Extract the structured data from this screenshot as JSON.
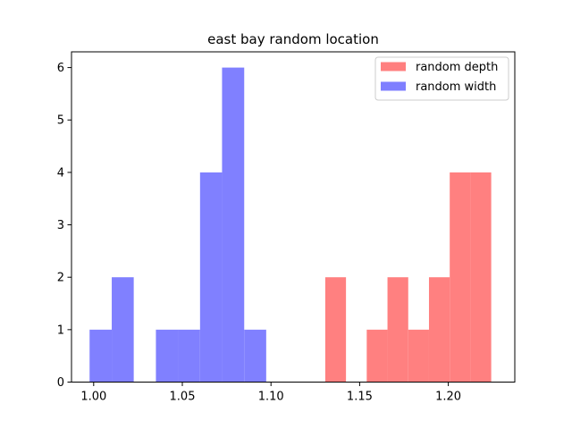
{
  "chart_data": {
    "type": "bar",
    "title": "east bay random location",
    "xlabel": "",
    "ylabel": "",
    "xlim": [
      0.9875,
      1.2375
    ],
    "ylim": [
      0,
      6.3
    ],
    "xticks": [
      1.0,
      1.05,
      1.1,
      1.15,
      1.2
    ],
    "xtick_labels": [
      "1.00",
      "1.05",
      "1.10",
      "1.15",
      "1.20"
    ],
    "yticks": [
      0,
      1,
      2,
      3,
      4,
      5,
      6
    ],
    "ytick_labels": [
      "0",
      "1",
      "2",
      "3",
      "4",
      "5",
      "6"
    ],
    "grid": false,
    "legend_position": "top-right",
    "bin_width": 0.0117,
    "series": [
      {
        "name": "random depth",
        "color": "#ff8080",
        "bins": [
          {
            "x0": 1.1306,
            "x1": 1.1423,
            "count": 2
          },
          {
            "x0": 1.1423,
            "x1": 1.154,
            "count": 0
          },
          {
            "x0": 1.154,
            "x1": 1.1657,
            "count": 1
          },
          {
            "x0": 1.1657,
            "x1": 1.1774,
            "count": 2
          },
          {
            "x0": 1.1774,
            "x1": 1.1891,
            "count": 1
          },
          {
            "x0": 1.1891,
            "x1": 1.2008,
            "count": 2
          },
          {
            "x0": 1.2008,
            "x1": 1.2125,
            "count": 4
          },
          {
            "x0": 1.2125,
            "x1": 1.2242,
            "count": 4
          }
        ]
      },
      {
        "name": "random width",
        "color": "#8080ff",
        "bins": [
          {
            "x0": 0.9977,
            "x1": 1.0102,
            "count": 1
          },
          {
            "x0": 1.0102,
            "x1": 1.0226,
            "count": 2
          },
          {
            "x0": 1.0226,
            "x1": 1.0351,
            "count": 0
          },
          {
            "x0": 1.0351,
            "x1": 1.0475,
            "count": 1
          },
          {
            "x0": 1.0475,
            "x1": 1.06,
            "count": 1
          },
          {
            "x0": 1.06,
            "x1": 1.0724,
            "count": 4
          },
          {
            "x0": 1.0724,
            "x1": 1.0849,
            "count": 6
          },
          {
            "x0": 1.0849,
            "x1": 1.0973,
            "count": 1
          }
        ]
      }
    ]
  }
}
